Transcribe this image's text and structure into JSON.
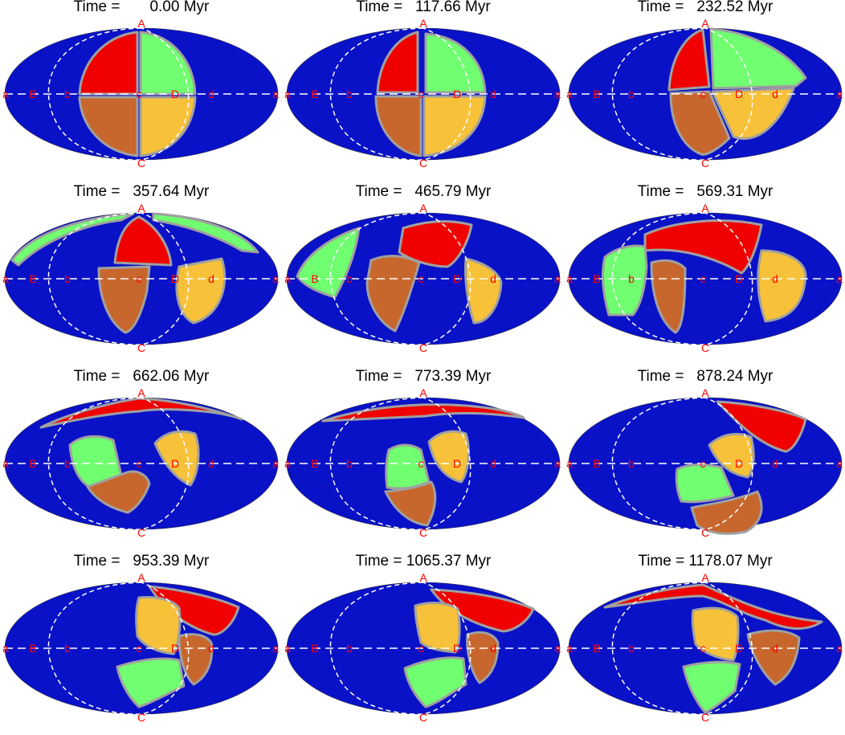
{
  "figure": {
    "panels": [
      {
        "time_label": "Time =       0.00 Myr"
      },
      {
        "time_label": "Time =   117.66 Myr"
      },
      {
        "time_label": "Time =   232.52 Myr"
      },
      {
        "time_label": "Time =   357.64 Myr"
      },
      {
        "time_label": "Time =   465.79 Myr"
      },
      {
        "time_label": "Time =   569.31 Myr"
      },
      {
        "time_label": "Time =   662.06 Myr"
      },
      {
        "time_label": "Time =   773.39 Myr"
      },
      {
        "time_label": "Time =   878.24 Myr"
      },
      {
        "time_label": "Time =   953.39 Myr"
      },
      {
        "time_label": "Time = 1065.37 Myr"
      },
      {
        "time_label": "Time = 1178.07 Myr"
      }
    ],
    "point_labels": {
      "north": "A",
      "south": "C",
      "edge": "a",
      "B": "B",
      "b": "b",
      "c": "c",
      "D": "D",
      "d": "d"
    },
    "colors": {
      "background_region": "#0a12c8",
      "red_region": "#f00000",
      "green_region": "#70ff70",
      "yellow_region": "#f7c13a",
      "brown_region": "#c8672d",
      "boundary": "#a0a0a0",
      "guide_lines": "#ffffff",
      "labels": "#ff0000"
    }
  }
}
